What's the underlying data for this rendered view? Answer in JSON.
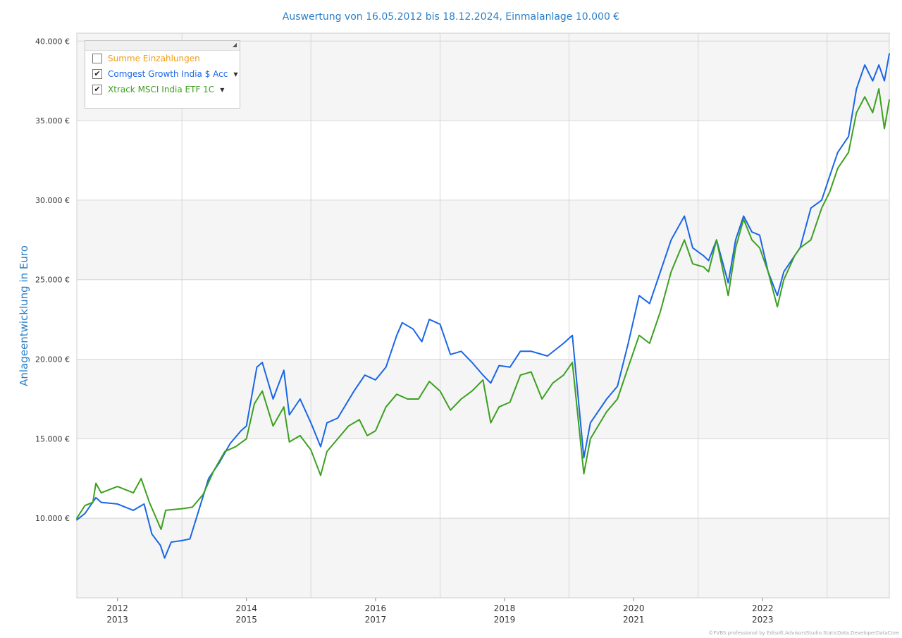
{
  "chart_data": {
    "type": "line",
    "title": "Auswertung von 16.05.2012 bis 18.12.2024, Einmalanlage 10.000 €",
    "ylabel": "Anlageentwicklung  in Euro",
    "xlabel": "",
    "ylim": [
      5000,
      40500
    ],
    "xlim": [
      "2012-05-16",
      "2024-12-18"
    ],
    "y_ticks": [
      "10.000 €",
      "15.000 €",
      "20.000 €",
      "25.000 €",
      "30.000 €",
      "35.000 €",
      "40.000 €"
    ],
    "x_ticks": [
      {
        "top": "2012",
        "bottom": "2013"
      },
      {
        "top": "2014",
        "bottom": "2015"
      },
      {
        "top": "2016",
        "bottom": "2017"
      },
      {
        "top": "2018",
        "bottom": "2019"
      },
      {
        "top": "2020",
        "bottom": "2021"
      },
      {
        "top": "2022",
        "bottom": "2023"
      }
    ],
    "grid": true,
    "legend_position": "top-left",
    "series": [
      {
        "name": "Comgest Growth India $ Acc",
        "color": "#1a66e6",
        "visible": true,
        "points": [
          [
            "2012-05-16",
            9900
          ],
          [
            "2012-07-01",
            10300
          ],
          [
            "2012-09-01",
            11300
          ],
          [
            "2012-10-01",
            11000
          ],
          [
            "2013-01-01",
            10900
          ],
          [
            "2013-04-01",
            10500
          ],
          [
            "2013-06-01",
            10900
          ],
          [
            "2013-07-15",
            9000
          ],
          [
            "2013-09-01",
            8300
          ],
          [
            "2013-09-25",
            7500
          ],
          [
            "2013-11-01",
            8500
          ],
          [
            "2014-01-01",
            8600
          ],
          [
            "2014-02-15",
            8700
          ],
          [
            "2014-04-01",
            10300
          ],
          [
            "2014-06-01",
            12500
          ],
          [
            "2014-08-01",
            13500
          ],
          [
            "2014-10-01",
            14700
          ],
          [
            "2014-12-01",
            15500
          ],
          [
            "2015-01-01",
            15800
          ],
          [
            "2015-03-01",
            19500
          ],
          [
            "2015-04-01",
            19800
          ],
          [
            "2015-06-01",
            17500
          ],
          [
            "2015-08-01",
            19300
          ],
          [
            "2015-09-01",
            16500
          ],
          [
            "2015-11-01",
            17500
          ],
          [
            "2016-01-01",
            16000
          ],
          [
            "2016-02-25",
            14500
          ],
          [
            "2016-04-01",
            16000
          ],
          [
            "2016-06-01",
            16300
          ],
          [
            "2016-09-01",
            18000
          ],
          [
            "2016-11-01",
            19000
          ],
          [
            "2017-01-01",
            18700
          ],
          [
            "2017-03-01",
            19500
          ],
          [
            "2017-05-01",
            21500
          ],
          [
            "2017-06-01",
            22300
          ],
          [
            "2017-08-01",
            21900
          ],
          [
            "2017-09-20",
            21100
          ],
          [
            "2017-11-01",
            22500
          ],
          [
            "2018-01-01",
            22200
          ],
          [
            "2018-03-01",
            20300
          ],
          [
            "2018-05-01",
            20500
          ],
          [
            "2018-07-01",
            19800
          ],
          [
            "2018-09-01",
            19000
          ],
          [
            "2018-10-15",
            18500
          ],
          [
            "2018-12-01",
            19600
          ],
          [
            "2019-02-01",
            19500
          ],
          [
            "2019-04-01",
            20500
          ],
          [
            "2019-06-01",
            20500
          ],
          [
            "2019-09-01",
            20200
          ],
          [
            "2019-12-01",
            21000
          ],
          [
            "2020-01-20",
            21500
          ],
          [
            "2020-03-25",
            13800
          ],
          [
            "2020-05-01",
            16000
          ],
          [
            "2020-08-01",
            17500
          ],
          [
            "2020-10-01",
            18300
          ],
          [
            "2020-12-01",
            21000
          ],
          [
            "2021-02-01",
            24000
          ],
          [
            "2021-04-01",
            23500
          ],
          [
            "2021-06-01",
            25500
          ],
          [
            "2021-08-01",
            27500
          ],
          [
            "2021-10-15",
            29000
          ],
          [
            "2021-12-01",
            27000
          ],
          [
            "2022-02-01",
            26500
          ],
          [
            "2022-03-01",
            26200
          ],
          [
            "2022-04-15",
            27500
          ],
          [
            "2022-06-20",
            24800
          ],
          [
            "2022-08-01",
            27500
          ],
          [
            "2022-09-15",
            29000
          ],
          [
            "2022-11-01",
            28000
          ],
          [
            "2022-12-15",
            27800
          ],
          [
            "2023-02-01",
            25500
          ],
          [
            "2023-03-25",
            24000
          ],
          [
            "2023-05-01",
            25500
          ],
          [
            "2023-07-01",
            26500
          ],
          [
            "2023-08-01",
            27000
          ],
          [
            "2023-10-01",
            29500
          ],
          [
            "2023-12-01",
            30000
          ],
          [
            "2024-01-15",
            31500
          ],
          [
            "2024-03-01",
            33000
          ],
          [
            "2024-05-01",
            34000
          ],
          [
            "2024-06-15",
            37000
          ],
          [
            "2024-08-01",
            38500
          ],
          [
            "2024-09-15",
            37500
          ],
          [
            "2024-10-20",
            38500
          ],
          [
            "2024-11-20",
            37500
          ],
          [
            "2024-12-18",
            39200
          ]
        ]
      },
      {
        "name": "Xtrack MSCI India ETF 1C",
        "color": "#3ca020",
        "visible": true,
        "points": [
          [
            "2012-05-16",
            10000
          ],
          [
            "2012-07-01",
            10800
          ],
          [
            "2012-08-15",
            11000
          ],
          [
            "2012-09-01",
            12200
          ],
          [
            "2012-10-01",
            11600
          ],
          [
            "2013-01-01",
            12000
          ],
          [
            "2013-04-01",
            11600
          ],
          [
            "2013-05-15",
            12500
          ],
          [
            "2013-07-01",
            11000
          ],
          [
            "2013-09-05",
            9300
          ],
          [
            "2013-10-01",
            10500
          ],
          [
            "2014-01-01",
            10600
          ],
          [
            "2014-03-01",
            10700
          ],
          [
            "2014-05-01",
            11500
          ],
          [
            "2014-07-01",
            13000
          ],
          [
            "2014-09-01",
            14200
          ],
          [
            "2014-11-01",
            14500
          ],
          [
            "2015-01-01",
            15000
          ],
          [
            "2015-02-15",
            17200
          ],
          [
            "2015-04-01",
            18000
          ],
          [
            "2015-06-01",
            15800
          ],
          [
            "2015-08-01",
            17000
          ],
          [
            "2015-09-01",
            14800
          ],
          [
            "2015-11-01",
            15200
          ],
          [
            "2016-01-01",
            14300
          ],
          [
            "2016-02-25",
            12700
          ],
          [
            "2016-04-01",
            14200
          ],
          [
            "2016-06-01",
            15000
          ],
          [
            "2016-08-01",
            15800
          ],
          [
            "2016-10-01",
            16200
          ],
          [
            "2016-11-15",
            15200
          ],
          [
            "2017-01-01",
            15500
          ],
          [
            "2017-03-01",
            17000
          ],
          [
            "2017-05-01",
            17800
          ],
          [
            "2017-07-01",
            17500
          ],
          [
            "2017-09-01",
            17500
          ],
          [
            "2017-11-01",
            18600
          ],
          [
            "2018-01-01",
            18000
          ],
          [
            "2018-03-01",
            16800
          ],
          [
            "2018-05-01",
            17500
          ],
          [
            "2018-07-01",
            18000
          ],
          [
            "2018-09-01",
            18700
          ],
          [
            "2018-10-15",
            16000
          ],
          [
            "2018-12-01",
            17000
          ],
          [
            "2019-02-01",
            17300
          ],
          [
            "2019-04-01",
            19000
          ],
          [
            "2019-06-01",
            19200
          ],
          [
            "2019-08-01",
            17500
          ],
          [
            "2019-10-01",
            18500
          ],
          [
            "2019-12-01",
            19000
          ],
          [
            "2020-01-20",
            19800
          ],
          [
            "2020-03-25",
            12800
          ],
          [
            "2020-05-01",
            15000
          ],
          [
            "2020-08-01",
            16700
          ],
          [
            "2020-10-01",
            17500
          ],
          [
            "2020-12-01",
            19500
          ],
          [
            "2021-02-01",
            21500
          ],
          [
            "2021-04-01",
            21000
          ],
          [
            "2021-06-01",
            23000
          ],
          [
            "2021-08-01",
            25500
          ],
          [
            "2021-10-15",
            27500
          ],
          [
            "2021-12-01",
            26000
          ],
          [
            "2022-02-01",
            25800
          ],
          [
            "2022-03-01",
            25500
          ],
          [
            "2022-04-15",
            27500
          ],
          [
            "2022-06-20",
            24000
          ],
          [
            "2022-08-01",
            27000
          ],
          [
            "2022-09-15",
            28800
          ],
          [
            "2022-11-01",
            27500
          ],
          [
            "2022-12-15",
            27000
          ],
          [
            "2023-02-01",
            25500
          ],
          [
            "2023-03-25",
            23300
          ],
          [
            "2023-05-01",
            25000
          ],
          [
            "2023-07-01",
            26500
          ],
          [
            "2023-08-01",
            27000
          ],
          [
            "2023-10-01",
            27500
          ],
          [
            "2023-12-01",
            29500
          ],
          [
            "2024-01-15",
            30500
          ],
          [
            "2024-03-01",
            32000
          ],
          [
            "2024-05-01",
            33000
          ],
          [
            "2024-06-15",
            35500
          ],
          [
            "2024-08-01",
            36500
          ],
          [
            "2024-09-15",
            35500
          ],
          [
            "2024-10-20",
            37000
          ],
          [
            "2024-11-20",
            34500
          ],
          [
            "2024-12-18",
            36300
          ]
        ]
      }
    ]
  },
  "legend": {
    "items": [
      {
        "label": "Summe Einzahlungen",
        "checked": false,
        "color": "#f39c12"
      },
      {
        "label": "Comgest Growth India $ Acc",
        "checked": true,
        "color": "#1a66e6"
      },
      {
        "label": "Xtrack MSCI India ETF 1C",
        "checked": true,
        "color": "#3ca020"
      }
    ]
  },
  "colors": {
    "title": "#2a7fc8",
    "band": "#f5f5f5",
    "grid": "#d6d6d6"
  },
  "watermark": "©FVBS professional by Edisoft.AdvisorsStudio.StaticData.DeveloperDataCore"
}
